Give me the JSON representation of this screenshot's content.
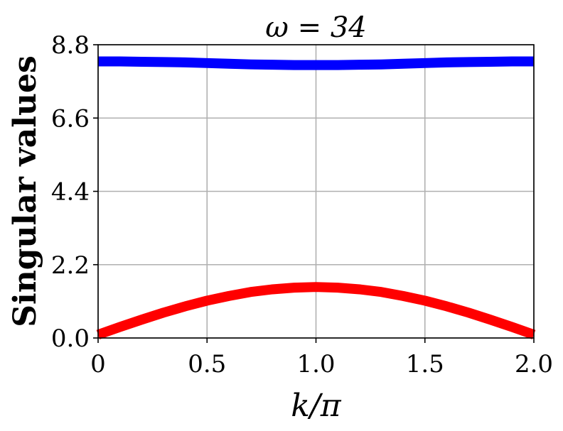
{
  "chart_data": {
    "type": "line",
    "title": "ω = 34",
    "xlabel": "k/π",
    "ylabel": "Singular values",
    "xlim": [
      0,
      2.0
    ],
    "ylim": [
      0,
      8.8
    ],
    "x_ticks": [
      0,
      0.5,
      1.0,
      1.5,
      2.0
    ],
    "x_tick_labels": [
      "0",
      "0.5",
      "1.0",
      "1.5",
      "2.0"
    ],
    "y_ticks": [
      0,
      2.2,
      4.4,
      6.6,
      8.8
    ],
    "y_tick_labels": [
      "0.0",
      "2.2",
      "4.4",
      "6.6",
      "8.8"
    ],
    "grid": true,
    "series": [
      {
        "color": "#0000ff",
        "x": [
          0,
          0.1,
          0.2,
          0.3,
          0.4,
          0.5,
          0.6,
          0.7,
          0.8,
          0.9,
          1.0,
          1.1,
          1.2,
          1.3,
          1.4,
          1.5,
          1.6,
          1.7,
          1.8,
          1.9,
          2.0
        ],
        "y": [
          8.3,
          8.3,
          8.29,
          8.28,
          8.27,
          8.25,
          8.23,
          8.21,
          8.2,
          8.19,
          8.19,
          8.19,
          8.2,
          8.21,
          8.23,
          8.25,
          8.27,
          8.28,
          8.29,
          8.3,
          8.3
        ]
      },
      {
        "color": "#ff0000",
        "x": [
          0,
          0.1,
          0.2,
          0.3,
          0.4,
          0.5,
          0.6,
          0.7,
          0.8,
          0.9,
          1.0,
          1.1,
          1.2,
          1.3,
          1.4,
          1.5,
          1.6,
          1.7,
          1.8,
          1.9,
          2.0
        ],
        "y": [
          0.1,
          0.33,
          0.55,
          0.76,
          0.95,
          1.12,
          1.26,
          1.38,
          1.46,
          1.51,
          1.53,
          1.51,
          1.46,
          1.38,
          1.26,
          1.12,
          0.95,
          0.76,
          0.55,
          0.33,
          0.1
        ]
      }
    ]
  }
}
